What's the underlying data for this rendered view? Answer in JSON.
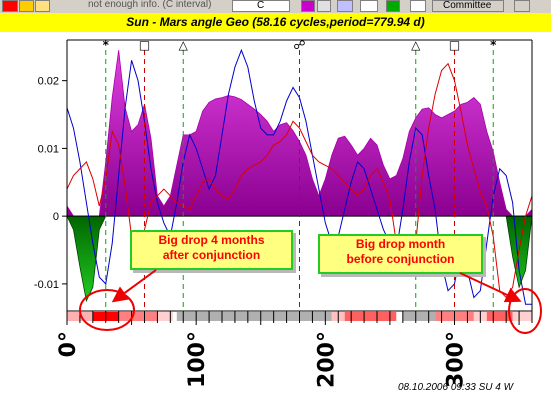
{
  "toolbar": {
    "status_text": "not enough info. (C interval)",
    "combo_value": "C",
    "button_label": "Committee",
    "colors": {
      "red_button": "#ff0000",
      "magenta_button": "#cc00cc",
      "green_button": "#00aa00"
    }
  },
  "title": "Sun - Mars angle Geo  (58.16 cycles,period=779.94 d)",
  "footer": "08.10.2006 09:33 SU  4 W",
  "annotations": [
    {
      "text_line1": "Big drop 4 months",
      "text_line2": "after conjunction"
    },
    {
      "text_line1": "Big drop month",
      "text_line2": "before conjunction"
    }
  ],
  "chart_data": {
    "type": "area",
    "title": "Sun - Mars angle Geo  (58.16 cycles,period=779.94 d)",
    "xlim": [
      0,
      360
    ],
    "ylim": [
      -0.014,
      0.026
    ],
    "y_ticks": [
      {
        "value": 0.02,
        "label": "0.02"
      },
      {
        "value": 0.01,
        "label": "0.01"
      },
      {
        "value": 0,
        "label": "0"
      },
      {
        "value": -0.01,
        "label": "-0.01"
      }
    ],
    "x_ticks": [
      {
        "value": 0,
        "label": "0°"
      },
      {
        "value": 100,
        "label": "100°"
      },
      {
        "value": 200,
        "label": "200°"
      },
      {
        "value": 300,
        "label": "300°"
      }
    ],
    "aspect_markers": [
      {
        "angle": 30,
        "glyph": "*",
        "line_color": "#00aa00"
      },
      {
        "angle": 60,
        "glyph": "□",
        "line_color": "#cc0000"
      },
      {
        "angle": 90,
        "glyph": "△",
        "line_color": "#00aa00"
      },
      {
        "angle": 180,
        "glyph": "☍",
        "line_color": "#cc0000"
      },
      {
        "angle": 270,
        "glyph": "△",
        "line_color": "#00aa00"
      },
      {
        "angle": 300,
        "glyph": "□",
        "line_color": "#cc0000"
      },
      {
        "angle": 330,
        "glyph": "*",
        "line_color": "#00aa00"
      }
    ],
    "band_segments": [
      {
        "from": 0,
        "to": 20,
        "color": "#ffb0b0"
      },
      {
        "from": 20,
        "to": 40,
        "color": "#ff0000"
      },
      {
        "from": 40,
        "to": 70,
        "color": "#ff8080"
      },
      {
        "from": 70,
        "to": 82,
        "color": "#ffd0d0"
      },
      {
        "from": 82,
        "to": 85,
        "color": "#ffffff"
      },
      {
        "from": 85,
        "to": 205,
        "color": "#b0b0b0"
      },
      {
        "from": 205,
        "to": 215,
        "color": "#ffc0c0"
      },
      {
        "from": 215,
        "to": 255,
        "color": "#ff6060"
      },
      {
        "from": 255,
        "to": 260,
        "color": "#ffffff"
      },
      {
        "from": 260,
        "to": 285,
        "color": "#b0b0b0"
      },
      {
        "from": 285,
        "to": 315,
        "color": "#ff8080"
      },
      {
        "from": 315,
        "to": 325,
        "color": "#ffd0d0"
      },
      {
        "from": 325,
        "to": 345,
        "color": "#ff6060"
      },
      {
        "from": 345,
        "to": 360,
        "color": "#ffd0d0"
      }
    ],
    "series": [
      {
        "kind": "area",
        "positive_color": "#bb00bb",
        "negative_color": "#008800",
        "x": [
          0,
          5,
          10,
          15,
          20,
          25,
          30,
          35,
          40,
          45,
          50,
          55,
          60,
          65,
          70,
          75,
          80,
          85,
          90,
          95,
          100,
          105,
          110,
          115,
          120,
          125,
          130,
          135,
          140,
          145,
          150,
          155,
          160,
          165,
          170,
          175,
          180,
          185,
          190,
          195,
          200,
          205,
          210,
          215,
          220,
          225,
          230,
          235,
          240,
          245,
          250,
          255,
          260,
          265,
          270,
          275,
          280,
          285,
          290,
          295,
          300,
          305,
          310,
          315,
          320,
          325,
          330,
          335,
          340,
          345,
          350,
          355,
          360
        ],
        "y": [
          0.0015,
          -0.002,
          -0.0075,
          -0.0125,
          -0.0105,
          -0.002,
          0.008,
          0.0175,
          0.0245,
          0.016,
          0.0125,
          0.0135,
          0.0165,
          0.0115,
          0.003,
          0.0015,
          0.003,
          0.0075,
          0.012,
          0.012,
          0.0125,
          0.0155,
          0.0168,
          0.0173,
          0.0175,
          0.0178,
          0.0176,
          0.0172,
          0.0165,
          0.0158,
          0.015,
          0.014,
          0.0125,
          0.0135,
          0.0138,
          0.0126,
          0.011,
          0.009,
          0.0055,
          0.003,
          0.0055,
          0.009,
          0.0115,
          0.0118,
          0.0105,
          0.009,
          0.01,
          0.0115,
          0.0105,
          0.0075,
          0.0055,
          0.006,
          0.0085,
          0.0125,
          0.0145,
          0.0158,
          0.016,
          0.015,
          0.0145,
          0.015,
          0.0155,
          0.0165,
          0.0168,
          0.0175,
          0.0165,
          0.0125,
          0.0095,
          0.005,
          0.001,
          -0.006,
          -0.0105,
          -0.008,
          0.001
        ]
      },
      {
        "kind": "line",
        "color": "#0000cc",
        "x": [
          0,
          5,
          10,
          15,
          20,
          25,
          30,
          35,
          40,
          45,
          50,
          55,
          60,
          65,
          70,
          75,
          80,
          85,
          90,
          95,
          100,
          105,
          110,
          115,
          120,
          125,
          130,
          135,
          140,
          145,
          150,
          155,
          160,
          165,
          170,
          175,
          180,
          185,
          190,
          195,
          200,
          205,
          210,
          215,
          220,
          225,
          230,
          235,
          240,
          245,
          250,
          255,
          260,
          265,
          270,
          275,
          280,
          285,
          290,
          295,
          300,
          305,
          310,
          315,
          320,
          325,
          330,
          335,
          340,
          345,
          350,
          355,
          360
        ],
        "y": [
          0.016,
          0.013,
          0.008,
          0.002,
          -0.004,
          -0.009,
          -0.01,
          -0.004,
          0.006,
          0.016,
          0.023,
          0.02,
          0.014,
          0.007,
          0.002,
          -0.001,
          -0.003,
          0.002,
          0.008,
          0.012,
          0.01,
          0.007,
          0.004,
          0.006,
          0.012,
          0.018,
          0.022,
          0.0245,
          0.022,
          0.017,
          0.013,
          0.012,
          0.012,
          0.014,
          0.017,
          0.019,
          0.0175,
          0.014,
          0.009,
          0.004,
          -0.001,
          -0.004,
          -0.003,
          0.001,
          0.005,
          0.008,
          0.007,
          0.004,
          0.001,
          -0.002,
          -0.004,
          -0.005,
          0.001,
          0.008,
          0.013,
          0.012,
          0.006,
          0.001,
          -0.007,
          -0.011,
          -0.01,
          -0.005,
          -0.008,
          -0.012,
          -0.011,
          -0.004,
          0.003,
          0.007,
          0.006,
          0.002,
          -0.008,
          -0.013,
          -0.013
        ]
      },
      {
        "kind": "line",
        "color": "#dd0000",
        "x": [
          0,
          5,
          10,
          15,
          20,
          25,
          30,
          35,
          40,
          45,
          50,
          55,
          60,
          65,
          70,
          75,
          80,
          85,
          90,
          95,
          100,
          105,
          110,
          115,
          120,
          125,
          130,
          135,
          140,
          145,
          150,
          155,
          160,
          165,
          170,
          175,
          180,
          185,
          190,
          195,
          200,
          205,
          210,
          215,
          220,
          225,
          230,
          235,
          240,
          245,
          250,
          255,
          260,
          265,
          270,
          275,
          280,
          285,
          290,
          295,
          300,
          305,
          310,
          315,
          320,
          325,
          330,
          335,
          340,
          345,
          350,
          355,
          360
        ],
        "y": [
          0.004,
          0.006,
          0.007,
          0.008,
          0.0055,
          0.0015,
          0.0055,
          0.0125,
          0.0105,
          0.0045,
          -0.003,
          -0.006,
          -0.002,
          0.002,
          0.003,
          0.004,
          0.003,
          0.002,
          0.0015,
          0.001,
          0.003,
          0.005,
          0.0055,
          0.004,
          0.003,
          0.0025,
          0.004,
          0.006,
          0.007,
          0.0075,
          0.008,
          0.009,
          0.0105,
          0.011,
          0.012,
          0.014,
          0.013,
          0.011,
          0.009,
          0.008,
          0.0075,
          0.007,
          0.006,
          0.005,
          0.004,
          0.003,
          0.004,
          0.006,
          0.007,
          0.005,
          0.0025,
          -0.004,
          -0.0075,
          -0.008,
          -0.004,
          0.006,
          0.013,
          0.018,
          0.0215,
          0.0225,
          0.02,
          0.0155,
          0.0105,
          0.007,
          0.0035,
          0.0015,
          -0.003,
          -0.011,
          -0.012,
          -0.0105,
          -0.005,
          0.0,
          0.003
        ]
      }
    ]
  }
}
